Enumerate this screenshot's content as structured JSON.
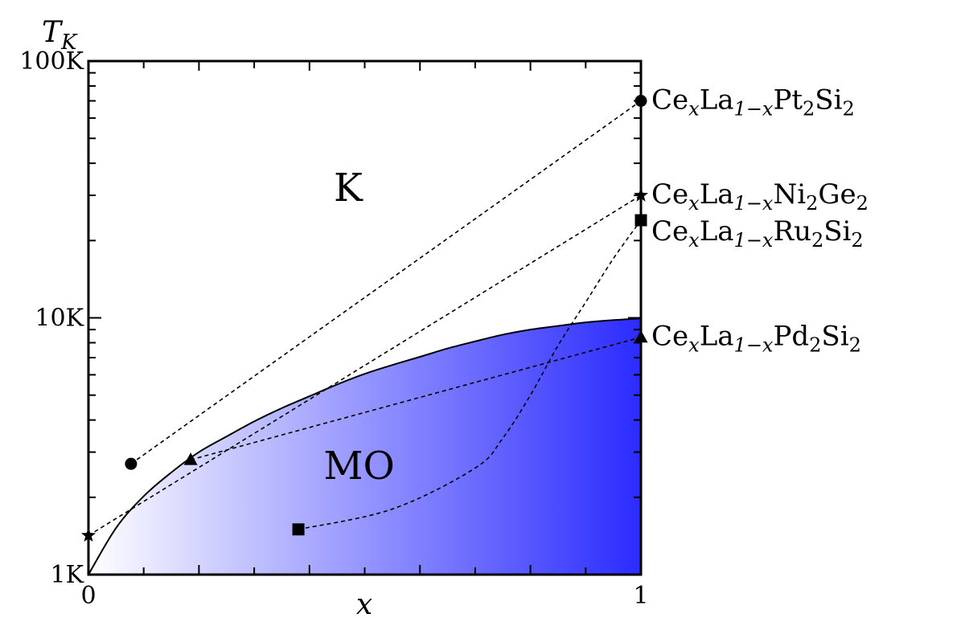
{
  "chart_data": {
    "type": "line",
    "xlabel": "x",
    "ylabel": "T_K",
    "ylabel_main": "T",
    "ylabel_sub": "K",
    "xlim": [
      0,
      1
    ],
    "ylim": [
      1,
      100
    ],
    "yscale": "log",
    "grid": false,
    "x_tick_labels": [
      "0",
      "1"
    ],
    "y_tick_labels": [
      "1K",
      "10K",
      "100K"
    ],
    "y_tick_values": [
      1,
      10,
      100
    ],
    "regions": [
      {
        "label": "K",
        "x": 0.47,
        "y": 32
      },
      {
        "label": "MO",
        "x": 0.49,
        "y": 2.65
      }
    ],
    "boundary": {
      "x": [
        0,
        0.05,
        0.1,
        0.15,
        0.2,
        0.25,
        0.3,
        0.35,
        0.4,
        0.45,
        0.5,
        0.55,
        0.6,
        0.65,
        0.7,
        0.75,
        0.8,
        0.85,
        0.9,
        0.95,
        1.0
      ],
      "y": [
        1.0,
        1.52,
        2.02,
        2.5,
        3.0,
        3.45,
        3.95,
        4.45,
        4.95,
        5.5,
        6.05,
        6.55,
        7.05,
        7.6,
        8.1,
        8.6,
        9.0,
        9.3,
        9.6,
        9.8,
        9.95
      ]
    },
    "shading_color": "#2b2bff",
    "series": [
      {
        "name": "CePt",
        "label_parts": [
          "Ce",
          "x",
          "La",
          "1−x",
          "Pt",
          "2",
          "Si",
          "2"
        ],
        "marker": "circle",
        "x": [
          0.077,
          1.0
        ],
        "y": [
          2.7,
          70.0
        ],
        "curve": "linear"
      },
      {
        "name": "CeNi",
        "label_parts": [
          "Ce",
          "x",
          "La",
          "1−x",
          "Ni",
          "2",
          "Ge",
          "2"
        ],
        "marker": "star",
        "x": [
          0.0,
          1.0
        ],
        "y": [
          1.42,
          30.0
        ],
        "curve": "linear"
      },
      {
        "name": "CeRu",
        "label_parts": [
          "Ce",
          "x",
          "La",
          "1−x",
          "Ru",
          "2",
          "Si",
          "2"
        ],
        "marker": "square",
        "x": [
          0.38,
          0.55,
          0.7,
          0.75,
          0.8,
          0.85,
          0.9,
          0.95,
          1.0
        ],
        "y": [
          1.5,
          1.8,
          2.6,
          3.4,
          5.0,
          7.8,
          11.5,
          17.0,
          24.0
        ],
        "curve": "smooth"
      },
      {
        "name": "CePd",
        "label_parts": [
          "Ce",
          "x",
          "La",
          "1−x",
          "Pd",
          "2",
          "Si",
          "2"
        ],
        "marker": "triangle",
        "x": [
          0.185,
          1.0
        ],
        "y": [
          2.8,
          8.4
        ],
        "curve": "linear"
      }
    ]
  }
}
